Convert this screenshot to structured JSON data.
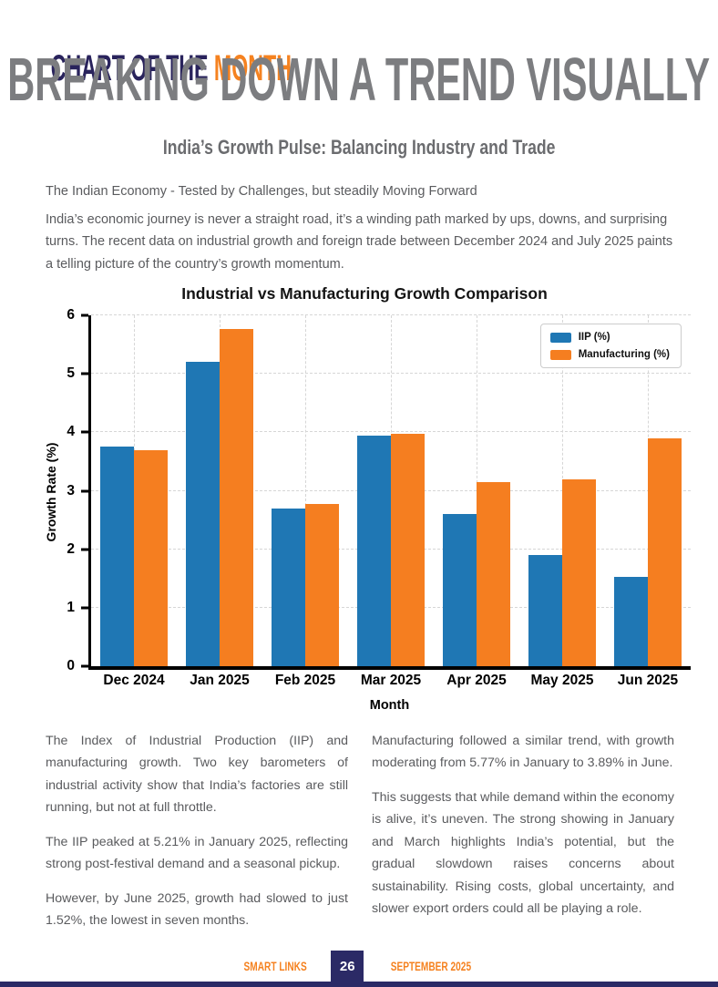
{
  "page": {
    "kicker_part1": "CHART OF THE ",
    "kicker_part2": "MONTH",
    "headline": "BREAKING DOWN A TREND VISUALLY",
    "subtitle": "India’s Growth Pulse: Balancing Industry and Trade",
    "lead": "The Indian Economy - Tested by Challenges, but steadily Moving Forward",
    "intro": "India’s economic journey is never a straight road, it’s a winding path marked by ups, downs, and surprising turns. The recent data on industrial growth and foreign trade between December 2024 and July 2025 paints a telling picture of the country’s growth momentum."
  },
  "chart_data": {
    "type": "bar",
    "title": "Industrial vs Manufacturing Growth Comparison",
    "categories": [
      "Dec 2024",
      "Jan 2025",
      "Feb 2025",
      "Mar 2025",
      "Apr 2025",
      "May 2025",
      "Jun 2025"
    ],
    "series": [
      {
        "name": "IIP (%)",
        "color": "#1f77b4",
        "values": [
          3.75,
          5.21,
          2.7,
          3.94,
          2.6,
          1.9,
          1.52
        ]
      },
      {
        "name": "Manufacturing (%)",
        "color": "#f57e20",
        "values": [
          3.7,
          5.77,
          2.78,
          3.97,
          3.15,
          3.2,
          3.89
        ]
      }
    ],
    "xlabel": "Month",
    "ylabel": "Growth Rate (%)",
    "ylim": [
      0,
      6
    ],
    "yticks": [
      0,
      1,
      2,
      3,
      4,
      5,
      6
    ],
    "grid": true,
    "grid_style": "dashed",
    "legend_position": "top-right"
  },
  "body": {
    "left": [
      "The Index of Industrial Production (IIP) and manufacturing growth. Two key barometers of industrial activity show that India’s factories are still running, but not at full throttle.",
      "The IIP peaked at 5.21% in January 2025, reflecting strong post-festival demand and a seasonal pickup.",
      "However, by June 2025, growth had slowed to just 1.52%, the lowest in seven months."
    ],
    "right": [
      "Manufacturing followed a similar trend, with growth moderating from 5.77% in January to 3.89% in June.",
      "This suggests that while demand within the economy is alive, it’s uneven. The strong showing in January and March highlights India’s potential, but the gradual slowdown raises concerns about sustainability. Rising costs, global uncertainty, and slower export orders could all be playing a role."
    ]
  },
  "footer": {
    "brand": "SMART LINKS",
    "page_number": "26",
    "issue": "SEPTEMBER 2025"
  },
  "colors": {
    "navy": "#2b2a66",
    "kicker_navy": "#29235c",
    "accent_orange": "#f58220",
    "headline_gray": "#7c7d80",
    "body_gray": "#5a5b5e",
    "bar_blue": "#1f77b4",
    "bar_orange": "#f57e20"
  }
}
